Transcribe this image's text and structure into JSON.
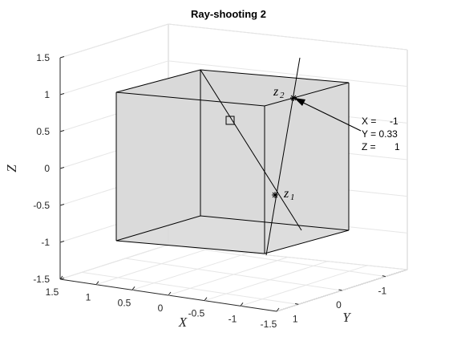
{
  "chart_data": {
    "type": "3d-line",
    "title": "Ray-shooting 2",
    "xlabel": "X",
    "ylabel": "Y",
    "zlabel": "Z",
    "xlim": [
      -1.5,
      1.5
    ],
    "ylim": [
      -1.5,
      1.5
    ],
    "zlim": [
      -1.5,
      1.5
    ],
    "x_ticks": [
      "1.5",
      "1",
      "0.5",
      "0",
      "-0.5",
      "-1",
      "-1.5"
    ],
    "y_ticks": [
      "1",
      "0",
      "-1"
    ],
    "z_ticks": [
      "1.5",
      "1",
      "0.5",
      "0",
      "-0.5",
      "-1",
      "-1.5"
    ],
    "grid": true,
    "cube": {
      "min": [
        -1,
        -1,
        -1
      ],
      "max": [
        1,
        1,
        1
      ],
      "face_color": "#d9d9d9",
      "edge_color": "#000000"
    },
    "series": [
      {
        "points": [
          [
            -1,
            -1,
            1.5
          ],
          [
            1,
            1,
            -1.2
          ]
        ],
        "color": "#000000"
      },
      {
        "points": [
          [
            -0.5,
            1.2,
            1.5
          ],
          [
            0,
            0,
            -1.1
          ]
        ],
        "color": "#000000"
      }
    ],
    "markers": [
      {
        "label": "z",
        "sub": "1",
        "point": [
          0,
          0,
          -0.35
        ],
        "symbol": "star"
      },
      {
        "label": "z",
        "sub": "2",
        "point": [
          -1,
          0.33,
          1
        ],
        "symbol": "star"
      },
      {
        "point": [
          0.7,
          0.5,
          0.7
        ],
        "symbol": "square"
      }
    ],
    "datatip": {
      "point": [
        -1,
        0.33,
        1
      ],
      "lines": [
        "X =     -1",
        "Y = 0.33",
        "Z =       1"
      ]
    }
  }
}
